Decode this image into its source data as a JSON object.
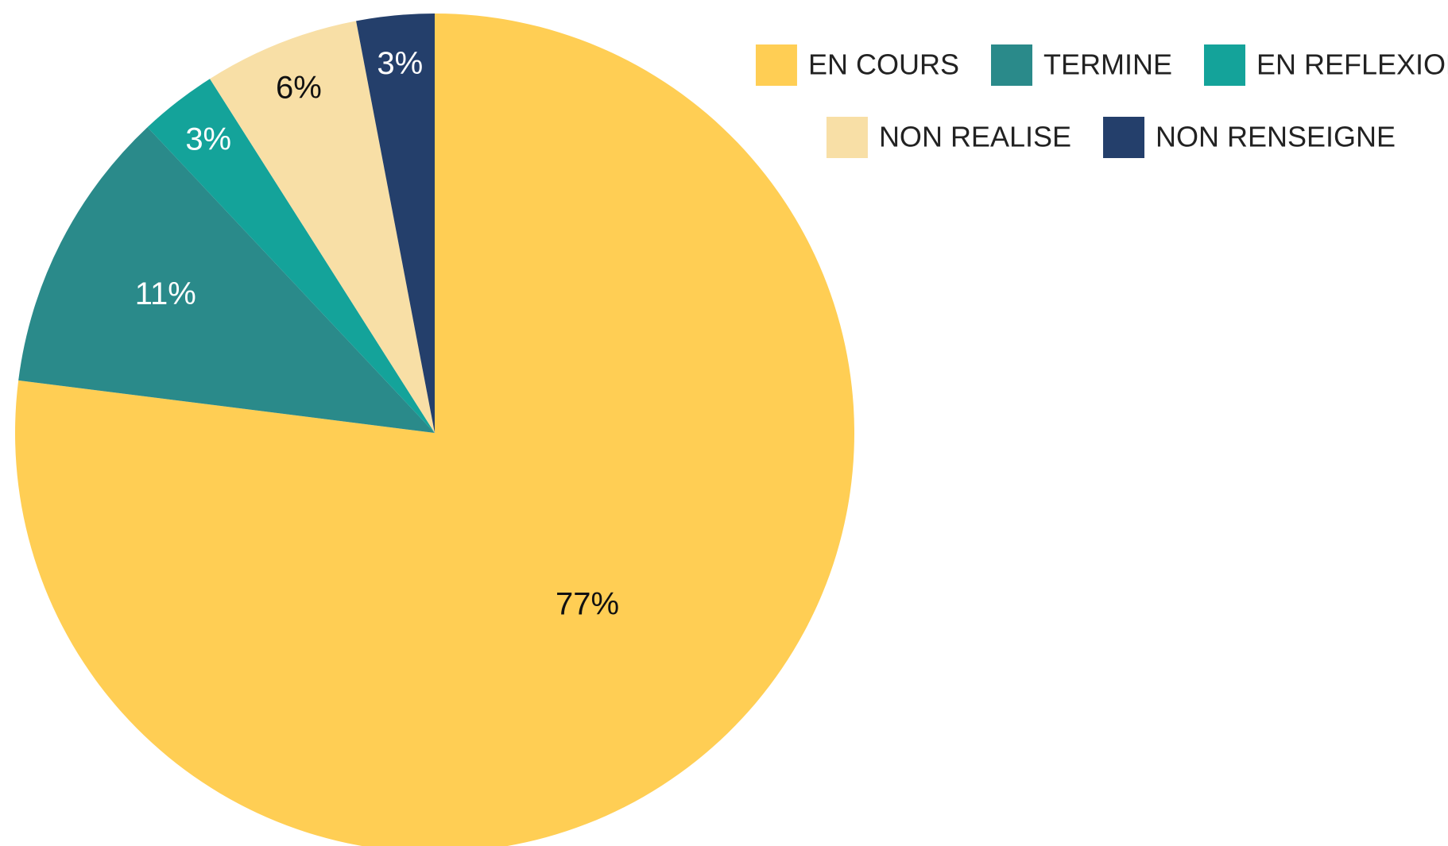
{
  "chart_data": {
    "type": "pie",
    "categories": [
      "EN COURS",
      "TERMINE",
      "EN REFLEXION",
      "NON REALISE",
      "NON RENSEIGNE"
    ],
    "values": [
      77,
      11,
      3,
      6,
      3
    ],
    "value_labels": [
      "77%",
      "11%",
      "3%",
      "6%",
      "3%"
    ],
    "colors": [
      "#FFCE54",
      "#2A8A8A",
      "#14A39A",
      "#F8DFA6",
      "#243F6B"
    ],
    "legend": "top-right"
  }
}
